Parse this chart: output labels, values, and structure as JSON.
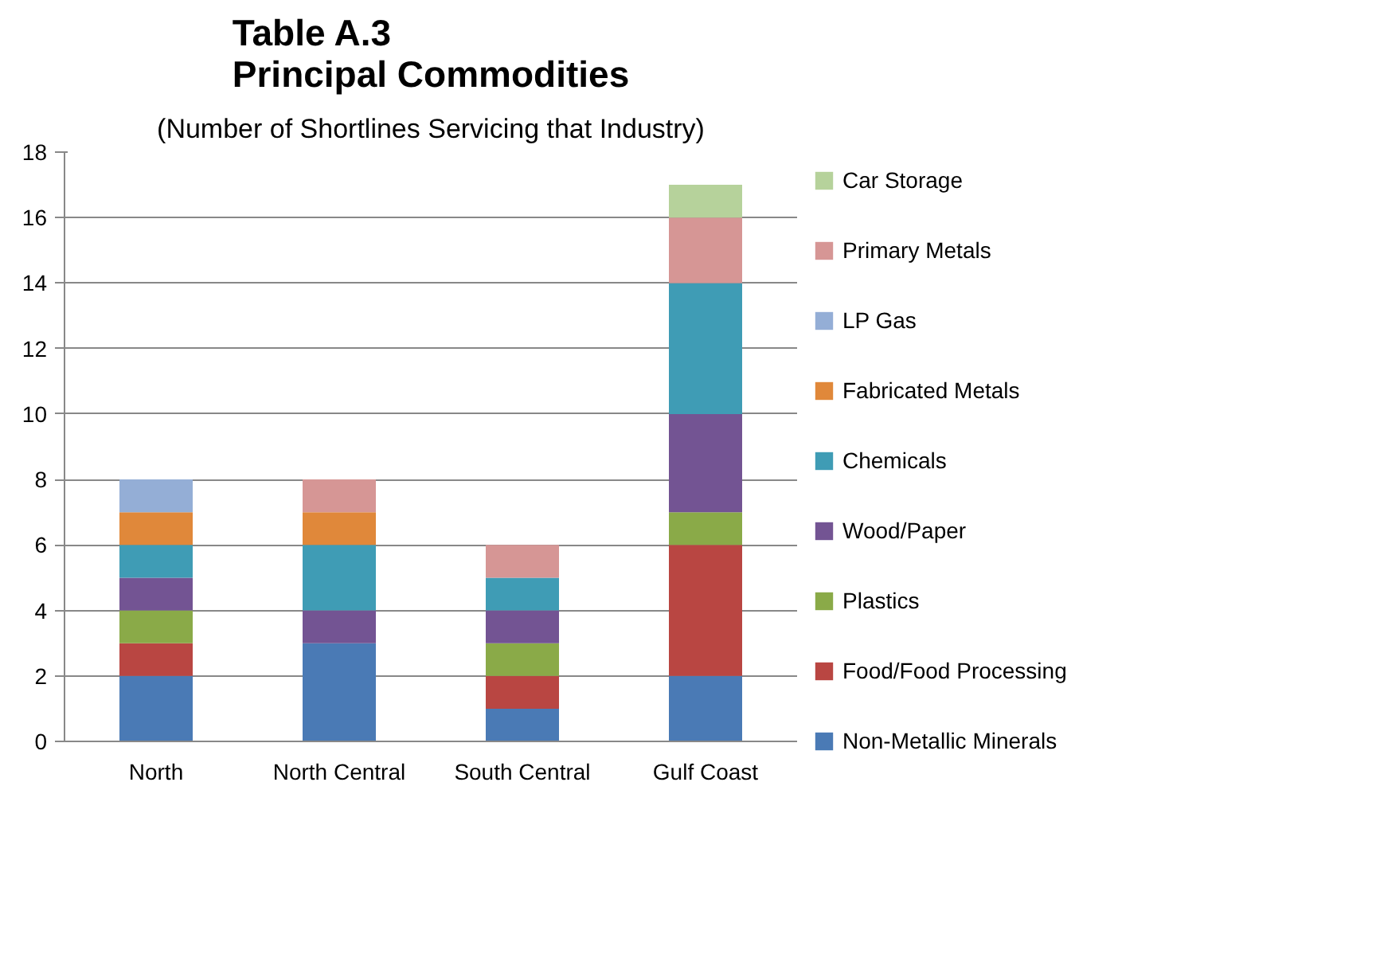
{
  "chart_data": {
    "type": "bar",
    "title": "Table A.3\nPrincipal Commodities",
    "subtitle": "(Number of Shortlines Servicing that Industry)",
    "categories": [
      "North",
      "North Central",
      "South Central",
      "Gulf Coast"
    ],
    "stacked": true,
    "ylim": [
      0,
      18
    ],
    "yticks": [
      0,
      2,
      4,
      6,
      8,
      10,
      12,
      14,
      16,
      18
    ],
    "grid": "y",
    "legend": "right",
    "series": [
      {
        "name": "Non-Metallic Minerals",
        "color": "#4a7ab5",
        "values": [
          2,
          3,
          1,
          2
        ]
      },
      {
        "name": "Food/Food Processing",
        "color": "#b94642",
        "values": [
          1,
          0,
          1,
          4
        ]
      },
      {
        "name": "Plastics",
        "color": "#8aaa48",
        "values": [
          1,
          0,
          1,
          1
        ]
      },
      {
        "name": "Wood/Paper",
        "color": "#735493",
        "values": [
          1,
          1,
          1,
          3
        ]
      },
      {
        "name": "Chemicals",
        "color": "#3f9cb5",
        "values": [
          1,
          2,
          1,
          4
        ]
      },
      {
        "name": "Fabricated Metals",
        "color": "#e0883a",
        "values": [
          1,
          1,
          0,
          0
        ]
      },
      {
        "name": "LP Gas",
        "color": "#94aed6",
        "values": [
          1,
          0,
          0,
          0
        ]
      },
      {
        "name": "Primary Metals",
        "color": "#d69695",
        "values": [
          0,
          1,
          1,
          2
        ]
      },
      {
        "name": "Car Storage",
        "color": "#b6d29b",
        "values": [
          0,
          0,
          0,
          1
        ]
      }
    ]
  }
}
